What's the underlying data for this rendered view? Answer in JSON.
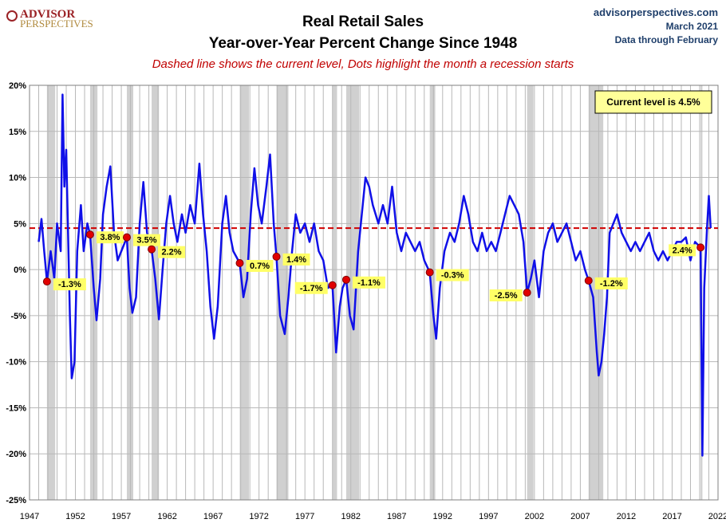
{
  "header": {
    "logo_top": "ADVISOR",
    "logo_bottom": "PERSPECTIVES",
    "title_line1": "Real Retail Sales",
    "title_line2": "Year-over-Year Percent Change Since 1948",
    "note": "Dashed line shows the current level, Dots highlight the month a recession starts",
    "site": "advisorperspectives.com",
    "date": "March 2021",
    "data_through": "Data through February"
  },
  "current_label": "Current level is 4.5%",
  "colors": {
    "line": "#1010e8",
    "recession_band": "#d0d0d0",
    "dashed": "#d00000",
    "dot": "#e00000",
    "label_bg": "#ffff66"
  },
  "chart_data": {
    "type": "line",
    "title": "Real Retail Sales Year-over-Year Percent Change Since 1948",
    "ylabel": "",
    "xlabel": "",
    "ylim": [
      -25,
      20
    ],
    "xlim": [
      1947,
      2022
    ],
    "grid": true,
    "y_tick_labels": [
      "20%",
      "15%",
      "10%",
      "5%",
      "0%",
      "-5%",
      "-10%",
      "-15%",
      "-20%",
      "-25%"
    ],
    "y_tick_values": [
      20,
      15,
      10,
      5,
      0,
      -5,
      -10,
      -15,
      -20,
      -25
    ],
    "x_tick_labels": [
      "1947",
      "1952",
      "1957",
      "1962",
      "1967",
      "1972",
      "1977",
      "1982",
      "1987",
      "1992",
      "1997",
      "2002",
      "2007",
      "2012",
      "2017",
      "2022"
    ],
    "x_tick_values": [
      1947,
      1952,
      1957,
      1962,
      1967,
      1972,
      1977,
      1982,
      1987,
      1992,
      1997,
      2002,
      2007,
      2012,
      2017,
      2022
    ],
    "current_level": 4.5,
    "recessions": [
      [
        1948.9,
        1949.8
      ],
      [
        1953.6,
        1954.4
      ],
      [
        1957.6,
        1958.3
      ],
      [
        1960.3,
        1961.1
      ],
      [
        1969.9,
        1970.9
      ],
      [
        1973.9,
        1975.2
      ],
      [
        1980.0,
        1980.5
      ],
      [
        1981.5,
        1982.9
      ],
      [
        1990.6,
        1991.2
      ],
      [
        2001.2,
        2001.9
      ],
      [
        2007.9,
        2009.5
      ],
      [
        2020.1,
        2020.3
      ]
    ],
    "recession_starts": [
      {
        "x": 1948.9,
        "y": -1.3,
        "label": "-1.3%"
      },
      {
        "x": 1953.6,
        "y": 3.8,
        "label": "3.8%"
      },
      {
        "x": 1957.6,
        "y": 3.5,
        "label": "3.5%"
      },
      {
        "x": 1960.3,
        "y": 2.2,
        "label": "2.2%"
      },
      {
        "x": 1969.9,
        "y": 0.7,
        "label": "0.7%"
      },
      {
        "x": 1973.9,
        "y": 1.4,
        "label": "1.4%"
      },
      {
        "x": 1980.0,
        "y": -1.7,
        "label": "-1.7%"
      },
      {
        "x": 1981.5,
        "y": -1.1,
        "label": "-1.1%"
      },
      {
        "x": 1990.6,
        "y": -0.3,
        "label": "-0.3%"
      },
      {
        "x": 2001.2,
        "y": -2.5,
        "label": "-2.5%"
      },
      {
        "x": 2007.9,
        "y": -1.2,
        "label": "-1.2%"
      },
      {
        "x": 2020.1,
        "y": 2.4,
        "label": "2.4%"
      }
    ],
    "series": [
      {
        "values": [
          [
            1948.0,
            3.0
          ],
          [
            1948.3,
            5.5
          ],
          [
            1948.6,
            2.0
          ],
          [
            1948.9,
            -1.3
          ],
          [
            1949.3,
            2.0
          ],
          [
            1949.7,
            -1.0
          ],
          [
            1950.0,
            5.0
          ],
          [
            1950.4,
            2.0
          ],
          [
            1950.6,
            19.0
          ],
          [
            1950.8,
            9.0
          ],
          [
            1951.0,
            13.0
          ],
          [
            1951.2,
            4.0
          ],
          [
            1951.4,
            -5.0
          ],
          [
            1951.6,
            -11.8
          ],
          [
            1951.9,
            -10.0
          ],
          [
            1952.2,
            2.0
          ],
          [
            1952.6,
            7.0
          ],
          [
            1952.9,
            2.0
          ],
          [
            1953.3,
            5.0
          ],
          [
            1953.6,
            3.8
          ],
          [
            1954.0,
            -2.0
          ],
          [
            1954.3,
            -5.5
          ],
          [
            1954.7,
            -1.0
          ],
          [
            1955.0,
            6.0
          ],
          [
            1955.4,
            9.0
          ],
          [
            1955.8,
            11.2
          ],
          [
            1956.2,
            4.0
          ],
          [
            1956.6,
            1.0
          ],
          [
            1957.0,
            2.0
          ],
          [
            1957.6,
            3.5
          ],
          [
            1957.9,
            -2.0
          ],
          [
            1958.2,
            -4.7
          ],
          [
            1958.6,
            -3.0
          ],
          [
            1959.0,
            5.0
          ],
          [
            1959.4,
            9.5
          ],
          [
            1959.8,
            4.0
          ],
          [
            1960.3,
            2.2
          ],
          [
            1960.7,
            -1.0
          ],
          [
            1961.1,
            -5.4
          ],
          [
            1961.5,
            0.0
          ],
          [
            1961.9,
            5.0
          ],
          [
            1962.3,
            8.0
          ],
          [
            1962.7,
            5.0
          ],
          [
            1963.1,
            3.0
          ],
          [
            1963.6,
            6.0
          ],
          [
            1964.0,
            4.0
          ],
          [
            1964.5,
            7.0
          ],
          [
            1965.0,
            5.0
          ],
          [
            1965.5,
            11.5
          ],
          [
            1965.9,
            6.0
          ],
          [
            1966.3,
            2.0
          ],
          [
            1966.7,
            -4.0
          ],
          [
            1967.1,
            -7.5
          ],
          [
            1967.5,
            -4.0
          ],
          [
            1968.0,
            5.0
          ],
          [
            1968.4,
            8.0
          ],
          [
            1968.8,
            4.0
          ],
          [
            1969.2,
            2.0
          ],
          [
            1969.9,
            0.7
          ],
          [
            1970.3,
            -3.0
          ],
          [
            1970.7,
            -1.0
          ],
          [
            1971.1,
            6.0
          ],
          [
            1971.5,
            11.0
          ],
          [
            1971.9,
            7.0
          ],
          [
            1972.3,
            5.0
          ],
          [
            1972.8,
            9.0
          ],
          [
            1973.2,
            12.5
          ],
          [
            1973.6,
            5.0
          ],
          [
            1973.9,
            1.4
          ],
          [
            1974.3,
            -5.0
          ],
          [
            1974.8,
            -7.0
          ],
          [
            1975.2,
            -3.0
          ],
          [
            1975.6,
            2.0
          ],
          [
            1976.0,
            6.0
          ],
          [
            1976.5,
            4.0
          ],
          [
            1977.0,
            5.0
          ],
          [
            1977.5,
            3.0
          ],
          [
            1978.0,
            5.0
          ],
          [
            1978.5,
            2.0
          ],
          [
            1979.0,
            1.0
          ],
          [
            1979.5,
            -2.0
          ],
          [
            1980.0,
            -1.7
          ],
          [
            1980.4,
            -9.0
          ],
          [
            1980.8,
            -4.0
          ],
          [
            1981.1,
            -2.0
          ],
          [
            1981.5,
            -1.1
          ],
          [
            1981.9,
            -5.0
          ],
          [
            1982.3,
            -6.5
          ],
          [
            1982.8,
            2.0
          ],
          [
            1983.2,
            6.0
          ],
          [
            1983.6,
            10.0
          ],
          [
            1984.0,
            9.0
          ],
          [
            1984.4,
            7.0
          ],
          [
            1985.0,
            5.0
          ],
          [
            1985.5,
            7.0
          ],
          [
            1986.0,
            5.0
          ],
          [
            1986.5,
            9.0
          ],
          [
            1987.0,
            4.0
          ],
          [
            1987.5,
            2.0
          ],
          [
            1988.0,
            4.0
          ],
          [
            1988.5,
            3.0
          ],
          [
            1989.0,
            2.0
          ],
          [
            1989.5,
            3.0
          ],
          [
            1990.0,
            1.0
          ],
          [
            1990.6,
            -0.3
          ],
          [
            1991.0,
            -5.0
          ],
          [
            1991.3,
            -7.5
          ],
          [
            1991.7,
            -2.0
          ],
          [
            1992.2,
            2.0
          ],
          [
            1992.8,
            4.0
          ],
          [
            1993.3,
            3.0
          ],
          [
            1993.8,
            5.0
          ],
          [
            1994.3,
            8.0
          ],
          [
            1994.8,
            6.0
          ],
          [
            1995.3,
            3.0
          ],
          [
            1995.8,
            2.0
          ],
          [
            1996.3,
            4.0
          ],
          [
            1996.8,
            2.0
          ],
          [
            1997.3,
            3.0
          ],
          [
            1997.8,
            2.0
          ],
          [
            1998.3,
            4.0
          ],
          [
            1998.8,
            6.0
          ],
          [
            1999.3,
            8.0
          ],
          [
            1999.8,
            7.0
          ],
          [
            2000.3,
            6.0
          ],
          [
            2000.8,
            3.0
          ],
          [
            2001.2,
            -2.5
          ],
          [
            2001.6,
            -1.0
          ],
          [
            2002.0,
            1.0
          ],
          [
            2002.5,
            -3.0
          ],
          [
            2003.0,
            2.0
          ],
          [
            2003.5,
            4.0
          ],
          [
            2004.0,
            5.0
          ],
          [
            2004.5,
            3.0
          ],
          [
            2005.0,
            4.0
          ],
          [
            2005.5,
            5.0
          ],
          [
            2006.0,
            3.0
          ],
          [
            2006.5,
            1.0
          ],
          [
            2007.0,
            2.0
          ],
          [
            2007.5,
            0.0
          ],
          [
            2007.9,
            -1.2
          ],
          [
            2008.4,
            -3.0
          ],
          [
            2008.8,
            -9.0
          ],
          [
            2009.0,
            -11.5
          ],
          [
            2009.3,
            -10.0
          ],
          [
            2009.6,
            -7.0
          ],
          [
            2009.9,
            -3.0
          ],
          [
            2010.2,
            4.0
          ],
          [
            2010.6,
            5.0
          ],
          [
            2011.0,
            6.0
          ],
          [
            2011.5,
            4.0
          ],
          [
            2012.0,
            3.0
          ],
          [
            2012.5,
            2.0
          ],
          [
            2013.0,
            3.0
          ],
          [
            2013.5,
            2.0
          ],
          [
            2014.0,
            3.0
          ],
          [
            2014.5,
            4.0
          ],
          [
            2015.0,
            2.0
          ],
          [
            2015.5,
            1.0
          ],
          [
            2016.0,
            2.0
          ],
          [
            2016.5,
            1.0
          ],
          [
            2017.0,
            2.0
          ],
          [
            2017.5,
            3.0
          ],
          [
            2018.0,
            3.0
          ],
          [
            2018.5,
            3.5
          ],
          [
            2019.0,
            1.0
          ],
          [
            2019.5,
            3.0
          ],
          [
            2020.1,
            2.4
          ],
          [
            2020.3,
            -20.2
          ],
          [
            2020.5,
            -2.0
          ],
          [
            2020.8,
            4.5
          ],
          [
            2021.0,
            8.0
          ],
          [
            2021.2,
            4.5
          ]
        ]
      }
    ]
  }
}
